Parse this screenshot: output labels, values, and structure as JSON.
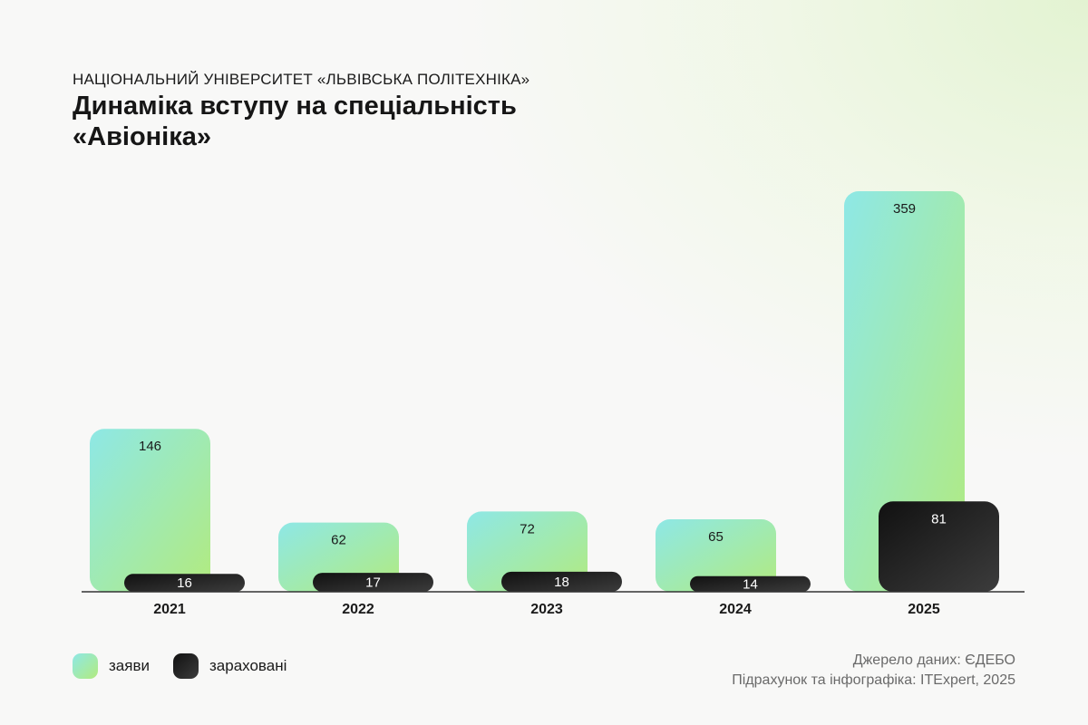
{
  "header": {
    "supertitle": "НАЦІОНАЛЬНИЙ УНІВЕРСИТЕТ «ЛЬВІВСЬКА ПОЛІТЕХНІКА»",
    "title": "Динаміка вступу на спеціальність «Авіоніка»"
  },
  "chart_data": {
    "type": "bar",
    "title": "Динаміка вступу на спеціальність «Авіоніка»",
    "categories": [
      "2021",
      "2022",
      "2023",
      "2024",
      "2025"
    ],
    "series": [
      {
        "name": "заяви",
        "values": [
          146,
          62,
          72,
          65,
          359
        ]
      },
      {
        "name": "зараховані",
        "values": [
          16,
          17,
          18,
          14,
          81
        ]
      }
    ],
    "ylim": [
      0,
      359
    ],
    "grid": false,
    "legend": "bottom-left",
    "data_labels": true
  },
  "legend": {
    "applications_label": "заяви",
    "enrolled_label": "зараховані"
  },
  "colors": {
    "applications_top": "#8ee8e6",
    "applications_bottom": "#b2eb7e",
    "enrolled_top": "#111111",
    "enrolled_bottom": "#3c3c3c",
    "axis": "#333333"
  },
  "footer": {
    "source": "Джерело даних: ЄДЕБО",
    "credit": "Підрахунок та інфографіка: ITExpert, 2025"
  }
}
